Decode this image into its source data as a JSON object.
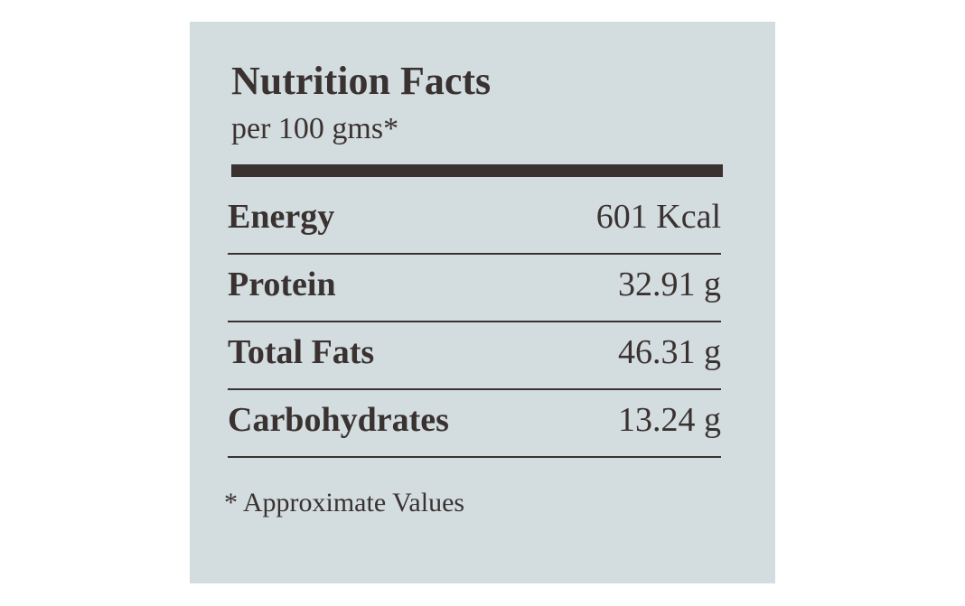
{
  "label": {
    "title": "Nutrition Facts",
    "subtitle": "per 100 gms*",
    "rows": [
      [
        "Energy",
        "601 Kcal"
      ],
      [
        "Protein",
        "32.91 g"
      ],
      [
        "Total Fats",
        "46.31 g"
      ],
      [
        "Carbohydrates",
        "13.24 g"
      ]
    ],
    "footnote": "* Approximate Values"
  }
}
